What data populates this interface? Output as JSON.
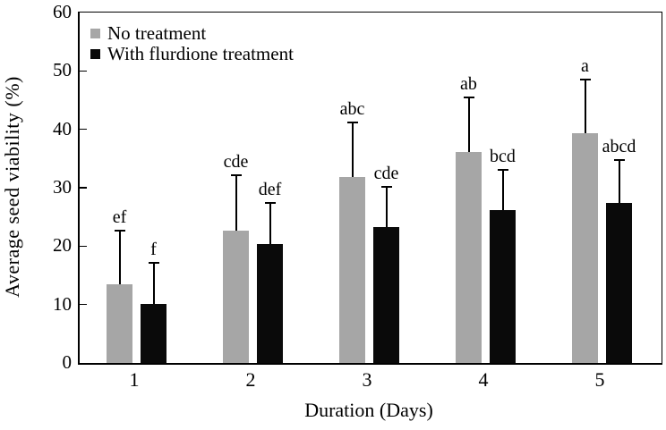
{
  "figure": {
    "y_axis_title": "Average seed viability (%)",
    "x_axis_title": "Duration (Days)"
  },
  "legend": {
    "items": [
      {
        "label": "No treatment",
        "color": "#a6a6a6"
      },
      {
        "label": "With flurdione treatment",
        "color": "#0a0a0a"
      }
    ]
  },
  "chart_data": {
    "type": "bar",
    "title": "",
    "xlabel": "Duration (Days)",
    "ylabel": "Average seed viability (%)",
    "categories": [
      "1",
      "2",
      "3",
      "4",
      "5"
    ],
    "ylim": [
      0,
      60
    ],
    "yticks": [
      0,
      10,
      20,
      30,
      40,
      50,
      60
    ],
    "grid": false,
    "legend_position": "top-left-inside",
    "error_bars": "plus-only",
    "series": [
      {
        "name": "No treatment",
        "color": "#a6a6a6",
        "values": [
          13.4,
          22.7,
          31.8,
          36.2,
          39.3
        ],
        "error_plus": [
          9.2,
          9.5,
          9.4,
          9.2,
          9.2
        ],
        "sig_letters": [
          "ef",
          "cde",
          "abc",
          "ab",
          "a"
        ]
      },
      {
        "name": "With flurdione treatment",
        "color": "#0a0a0a",
        "values": [
          10.1,
          20.3,
          23.3,
          26.1,
          27.4
        ],
        "error_plus": [
          7.0,
          7.1,
          6.9,
          7.0,
          7.3
        ],
        "sig_letters": [
          "f",
          "def",
          "cde",
          "bcd",
          "abcd"
        ]
      }
    ]
  }
}
